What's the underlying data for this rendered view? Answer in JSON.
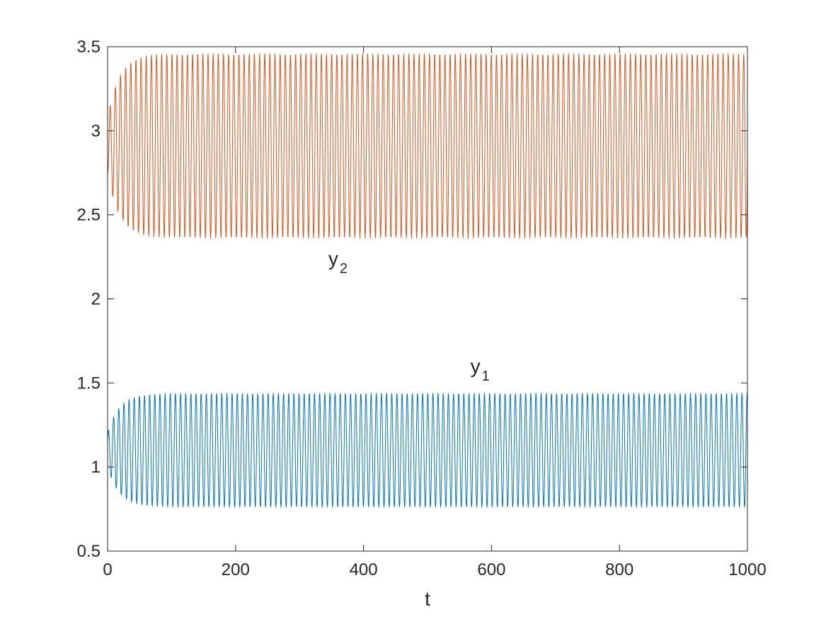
{
  "chart_data": {
    "type": "line",
    "title": "",
    "xlabel": "t",
    "ylabel": "",
    "xlim": [
      0,
      1000
    ],
    "ylim": [
      0.5,
      3.5
    ],
    "xticks": [
      "0",
      "200",
      "400",
      "600",
      "800",
      "1000"
    ],
    "yticks": [
      "0.5",
      "1",
      "1.5",
      "2",
      "2.5",
      "3",
      "3.5"
    ],
    "grid": false,
    "legend": "none",
    "series": [
      {
        "color": "#0072BD",
        "description": "sustained oscillation converging to limit cycle",
        "start": 1.15,
        "min_steady": 0.76,
        "max_steady": 1.44,
        "period": 8.05
      },
      {
        "color": "#D95319",
        "description": "sustained oscillation converging to limit cycle",
        "start": 2.7,
        "min_steady": 2.36,
        "max_steady": 3.46,
        "period": 8.05
      }
    ],
    "annotations": [
      {
        "base": "y",
        "sub": "2",
        "x": 345,
        "y": 2.2
      },
      {
        "base": "y",
        "sub": "1",
        "x": 567,
        "y": 1.56
      }
    ]
  }
}
